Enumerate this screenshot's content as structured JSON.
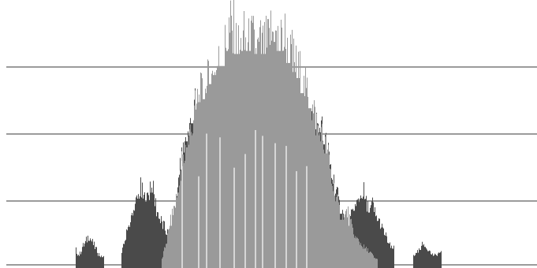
{
  "chart_data": {
    "type": "bar",
    "title": "",
    "xlabel": "",
    "ylabel": "",
    "grid": true,
    "legend": "none",
    "ylim": [
      0,
      4
    ],
    "gridlines": [
      1,
      2,
      3
    ],
    "series": [
      {
        "color": "#4a4a4a",
        "values": [
          {
            "x": 96,
            "y": 0.3
          },
          {
            "x": 100,
            "y": 0.2
          },
          {
            "x": 104,
            "y": 0.35
          },
          {
            "x": 108,
            "y": 0.42
          },
          {
            "x": 112,
            "y": 0.55
          },
          {
            "x": 116,
            "y": 0.45
          },
          {
            "x": 120,
            "y": 0.35
          },
          {
            "x": 124,
            "y": 0.25
          },
          {
            "x": 128,
            "y": 0.18
          },
          {
            "x": 154,
            "y": 0.25
          },
          {
            "x": 158,
            "y": 0.45
          },
          {
            "x": 162,
            "y": 0.68
          },
          {
            "x": 166,
            "y": 0.82
          },
          {
            "x": 170,
            "y": 0.95
          },
          {
            "x": 174,
            "y": 1.15
          },
          {
            "x": 178,
            "y": 1.3
          },
          {
            "x": 182,
            "y": 1.15
          },
          {
            "x": 186,
            "y": 1.1
          },
          {
            "x": 190,
            "y": 1.4
          },
          {
            "x": 194,
            "y": 1.25
          },
          {
            "x": 198,
            "y": 1.0
          },
          {
            "x": 202,
            "y": 0.82
          },
          {
            "x": 206,
            "y": 0.72
          },
          {
            "x": 210,
            "y": 0.62
          },
          {
            "x": 214,
            "y": 0.55
          },
          {
            "x": 222,
            "y": 0.95
          },
          {
            "x": 226,
            "y": 1.5
          },
          {
            "x": 230,
            "y": 1.8
          },
          {
            "x": 234,
            "y": 2.1
          },
          {
            "x": 238,
            "y": 2.2
          },
          {
            "x": 242,
            "y": 2.4
          },
          {
            "x": 246,
            "y": 2.6
          },
          {
            "x": 392,
            "y": 2.75
          },
          {
            "x": 396,
            "y": 2.6
          },
          {
            "x": 400,
            "y": 2.45
          },
          {
            "x": 404,
            "y": 2.3
          },
          {
            "x": 408,
            "y": 2.25
          },
          {
            "x": 412,
            "y": 2.05
          },
          {
            "x": 416,
            "y": 1.85
          },
          {
            "x": 420,
            "y": 1.6
          },
          {
            "x": 424,
            "y": 1.4
          },
          {
            "x": 428,
            "y": 1.15
          },
          {
            "x": 432,
            "y": 0.9
          },
          {
            "x": 444,
            "y": 0.8
          },
          {
            "x": 448,
            "y": 0.95
          },
          {
            "x": 452,
            "y": 1.05
          },
          {
            "x": 456,
            "y": 1.15
          },
          {
            "x": 460,
            "y": 1.3
          },
          {
            "x": 464,
            "y": 1.05
          },
          {
            "x": 468,
            "y": 0.92
          },
          {
            "x": 472,
            "y": 1.05
          },
          {
            "x": 476,
            "y": 0.85
          },
          {
            "x": 480,
            "y": 0.78
          },
          {
            "x": 484,
            "y": 0.65
          },
          {
            "x": 488,
            "y": 0.55
          },
          {
            "x": 492,
            "y": 0.42
          },
          {
            "x": 496,
            "y": 0.32
          },
          {
            "x": 524,
            "y": 0.2
          },
          {
            "x": 528,
            "y": 0.25
          },
          {
            "x": 532,
            "y": 0.3
          },
          {
            "x": 536,
            "y": 0.4
          },
          {
            "x": 540,
            "y": 0.35
          },
          {
            "x": 544,
            "y": 0.28
          },
          {
            "x": 548,
            "y": 0.22
          },
          {
            "x": 552,
            "y": 0.2
          },
          {
            "x": 556,
            "y": 0.25
          }
        ]
      },
      {
        "color": "#9a9a9a",
        "values": [
          {
            "x": 205,
            "y": 0.15
          },
          {
            "x": 210,
            "y": 0.4
          },
          {
            "x": 215,
            "y": 0.7
          },
          {
            "x": 220,
            "y": 1.0
          },
          {
            "x": 225,
            "y": 1.25
          },
          {
            "x": 230,
            "y": 1.6
          },
          {
            "x": 235,
            "y": 2.0
          },
          {
            "x": 240,
            "y": 2.2
          },
          {
            "x": 245,
            "y": 2.45
          },
          {
            "x": 250,
            "y": 2.75
          },
          {
            "x": 255,
            "y": 2.8
          },
          {
            "x": 260,
            "y": 2.9
          },
          {
            "x": 265,
            "y": 3.05
          },
          {
            "x": 270,
            "y": 3.2
          },
          {
            "x": 275,
            "y": 3.35
          },
          {
            "x": 280,
            "y": 3.35
          },
          {
            "x": 285,
            "y": 3.6
          },
          {
            "x": 290,
            "y": 3.95
          },
          {
            "x": 295,
            "y": 3.9
          },
          {
            "x": 300,
            "y": 3.55
          },
          {
            "x": 305,
            "y": 3.6
          },
          {
            "x": 310,
            "y": 3.75
          },
          {
            "x": 315,
            "y": 3.6
          },
          {
            "x": 320,
            "y": 3.7
          },
          {
            "x": 325,
            "y": 3.55
          },
          {
            "x": 330,
            "y": 3.65
          },
          {
            "x": 335,
            "y": 3.55
          },
          {
            "x": 340,
            "y": 3.7
          },
          {
            "x": 345,
            "y": 3.95
          },
          {
            "x": 350,
            "y": 3.75
          },
          {
            "x": 355,
            "y": 3.6
          },
          {
            "x": 360,
            "y": 3.9
          },
          {
            "x": 365,
            "y": 3.4
          },
          {
            "x": 370,
            "y": 3.45
          },
          {
            "x": 375,
            "y": 3.25
          },
          {
            "x": 380,
            "y": 3.15
          },
          {
            "x": 385,
            "y": 2.9
          },
          {
            "x": 390,
            "y": 2.85
          },
          {
            "x": 395,
            "y": 2.65
          },
          {
            "x": 400,
            "y": 2.45
          },
          {
            "x": 405,
            "y": 2.2
          },
          {
            "x": 410,
            "y": 2.1
          },
          {
            "x": 415,
            "y": 1.9
          },
          {
            "x": 420,
            "y": 1.5
          },
          {
            "x": 425,
            "y": 1.2
          },
          {
            "x": 430,
            "y": 0.95
          },
          {
            "x": 435,
            "y": 0.8
          },
          {
            "x": 440,
            "y": 0.95
          },
          {
            "x": 445,
            "y": 0.7
          },
          {
            "x": 450,
            "y": 0.5
          },
          {
            "x": 455,
            "y": 0.45
          },
          {
            "x": 460,
            "y": 0.35
          },
          {
            "x": 465,
            "y": 0.3
          },
          {
            "x": 470,
            "y": 0.25
          },
          {
            "x": 475,
            "y": 0.15
          }
        ]
      }
    ]
  }
}
